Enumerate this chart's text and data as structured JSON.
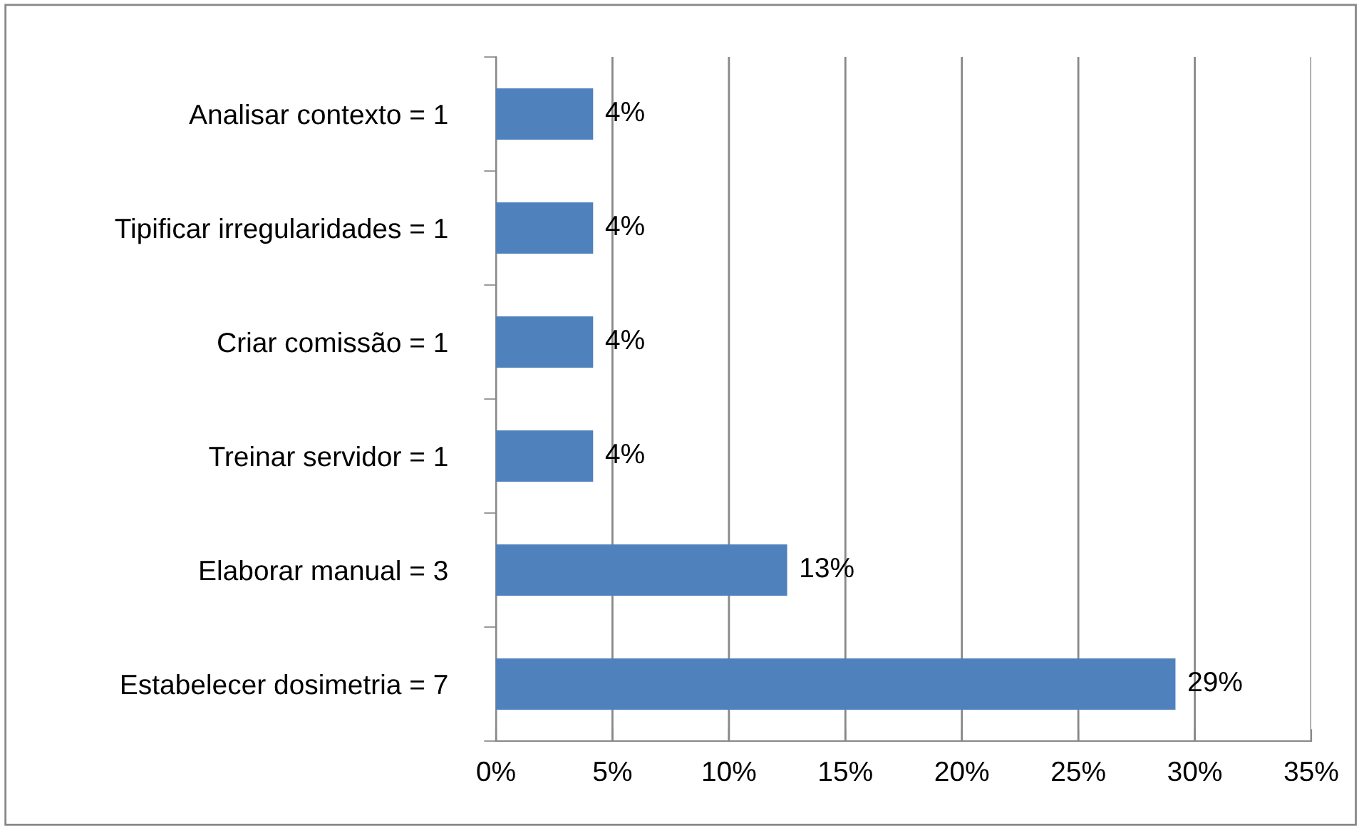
{
  "chart_data": {
    "type": "bar",
    "orientation": "horizontal",
    "categories": [
      "Analisar contexto = 1",
      "Tipificar irregularidades = 1",
      "Criar comissão = 1",
      "Treinar servidor = 1",
      "Elaborar manual = 3",
      "Estabelecer dosimetria = 7"
    ],
    "values": [
      4.17,
      4.17,
      4.17,
      4.17,
      12.5,
      29.17
    ],
    "value_labels": [
      "4%",
      "4%",
      "4%",
      "4%",
      "13%",
      "29%"
    ],
    "color": "#4f81bd",
    "xlim": [
      0,
      35
    ],
    "xticks": [
      {
        "value": 0,
        "label": "0%"
      },
      {
        "value": 5,
        "label": "5%"
      },
      {
        "value": 10,
        "label": "10%"
      },
      {
        "value": 15,
        "label": "15%"
      },
      {
        "value": 20,
        "label": "20%"
      },
      {
        "value": 25,
        "label": "25%"
      },
      {
        "value": 30,
        "label": "30%"
      },
      {
        "value": 35,
        "label": "35%"
      }
    ],
    "grid": "x",
    "legend": false
  }
}
